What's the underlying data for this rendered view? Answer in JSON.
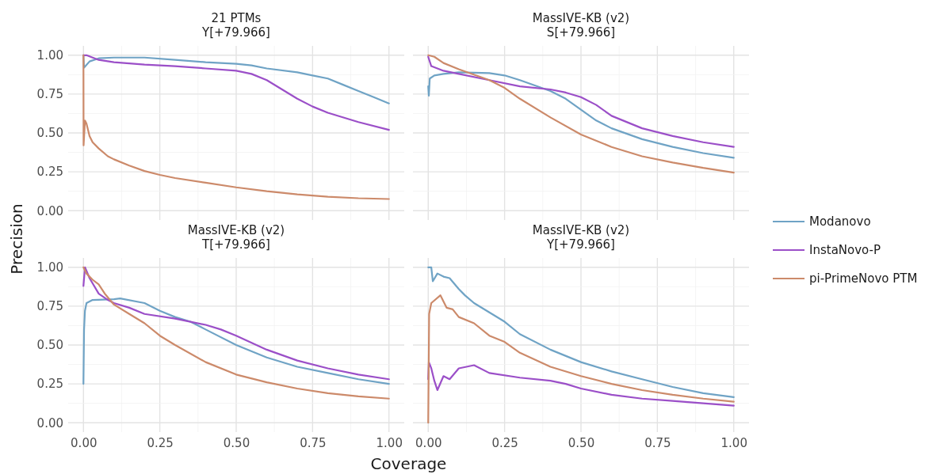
{
  "chart_data": [
    {
      "type": "line",
      "title": "21 PTMs\nY[+79.966]",
      "ylabel": "Precision",
      "legend": "right",
      "grid": true,
      "tick_labels": "y",
      "xlim": [
        -0.05,
        1.05
      ],
      "ylim": [
        -0.06,
        1.06
      ],
      "xticks": [
        0,
        {
          "value": 0.125,
          "label": null
        },
        0.25,
        {
          "value": 0.375,
          "label": null
        },
        0.5,
        {
          "value": 0.625,
          "label": null
        },
        0.75,
        {
          "value": 0.875,
          "label": null
        },
        1
      ],
      "yticks": [
        {
          "value": 0,
          "label": "0.00"
        },
        {
          "value": 0.125,
          "label": null
        },
        {
          "value": 0.25,
          "label": "0.25"
        },
        {
          "value": 0.375,
          "label": null
        },
        {
          "value": 0.5,
          "label": "0.50"
        },
        {
          "value": 0.625,
          "label": null
        },
        {
          "value": 0.75,
          "label": "0.75"
        },
        {
          "value": 0.875,
          "label": null
        },
        {
          "value": 1,
          "label": "1.00"
        }
      ],
      "series": [
        {
          "name": "Modanovo",
          "color": "#6fa3c5",
          "x": [
            0,
            0.002,
            0.02,
            0.05,
            0.1,
            0.2,
            0.3,
            0.4,
            0.5,
            0.55,
            0.6,
            0.7,
            0.75,
            0.8,
            0.85,
            0.9,
            0.95,
            1.0
          ],
          "values": [
            1.0,
            0.92,
            0.96,
            0.98,
            0.985,
            0.985,
            0.97,
            0.955,
            0.945,
            0.935,
            0.915,
            0.89,
            0.87,
            0.85,
            0.81,
            0.77,
            0.73,
            0.69
          ]
        },
        {
          "name": "InstaNovo-P",
          "color": "#9b4fc8",
          "x": [
            0,
            0.01,
            0.05,
            0.1,
            0.2,
            0.3,
            0.4,
            0.5,
            0.55,
            0.6,
            0.65,
            0.7,
            0.75,
            0.8,
            0.9,
            1.0
          ],
          "values": [
            1.0,
            1.0,
            0.97,
            0.955,
            0.94,
            0.93,
            0.915,
            0.9,
            0.88,
            0.84,
            0.78,
            0.72,
            0.67,
            0.63,
            0.57,
            0.52
          ]
        },
        {
          "name": "pi-PrimeNovo PTM",
          "color": "#cc8a6a",
          "x": [
            0,
            0.0005,
            0.005,
            0.01,
            0.02,
            0.03,
            0.05,
            0.08,
            0.1,
            0.15,
            0.2,
            0.25,
            0.3,
            0.4,
            0.5,
            0.6,
            0.7,
            0.8,
            0.9,
            1.0
          ],
          "values": [
            1.0,
            0.42,
            0.58,
            0.56,
            0.48,
            0.44,
            0.4,
            0.35,
            0.33,
            0.29,
            0.255,
            0.23,
            0.21,
            0.18,
            0.15,
            0.125,
            0.105,
            0.09,
            0.08,
            0.075
          ]
        }
      ]
    },
    {
      "type": "line",
      "title": "MassIVE-KB (v2)\nS[+79.966]",
      "grid": true,
      "tick_labels": false,
      "xlim": [
        -0.05,
        1.05
      ],
      "ylim": [
        -0.06,
        1.06
      ],
      "xticks": [
        0,
        {
          "value": 0.125,
          "label": null
        },
        0.25,
        {
          "value": 0.375,
          "label": null
        },
        0.5,
        {
          "value": 0.625,
          "label": null
        },
        0.75,
        {
          "value": 0.875,
          "label": null
        },
        1
      ],
      "yticks": [
        0,
        {
          "value": 0.125,
          "label": null
        },
        0.25,
        {
          "value": 0.375,
          "label": null
        },
        0.5,
        {
          "value": 0.625,
          "label": null
        },
        0.75,
        {
          "value": 0.875,
          "label": null
        },
        1
      ],
      "series": [
        {
          "color": "#6fa3c5",
          "x": [
            0,
            0.002,
            0.005,
            0.02,
            0.05,
            0.1,
            0.2,
            0.25,
            0.3,
            0.4,
            0.45,
            0.5,
            0.55,
            0.6,
            0.7,
            0.8,
            0.9,
            1.0
          ],
          "values": [
            0.8,
            0.74,
            0.85,
            0.87,
            0.88,
            0.89,
            0.885,
            0.87,
            0.84,
            0.77,
            0.72,
            0.65,
            0.58,
            0.53,
            0.46,
            0.41,
            0.37,
            0.34
          ]
        },
        {
          "color": "#9b4fc8",
          "x": [
            0,
            0.01,
            0.05,
            0.1,
            0.2,
            0.3,
            0.4,
            0.45,
            0.5,
            0.55,
            0.6,
            0.7,
            0.8,
            0.9,
            1.0
          ],
          "values": [
            0.99,
            0.93,
            0.9,
            0.88,
            0.84,
            0.8,
            0.78,
            0.76,
            0.73,
            0.68,
            0.61,
            0.53,
            0.48,
            0.44,
            0.41
          ]
        },
        {
          "color": "#cc8a6a",
          "x": [
            0,
            0.02,
            0.05,
            0.1,
            0.2,
            0.25,
            0.3,
            0.4,
            0.5,
            0.6,
            0.7,
            0.8,
            0.9,
            1.0
          ],
          "values": [
            1.0,
            0.99,
            0.95,
            0.91,
            0.84,
            0.79,
            0.72,
            0.6,
            0.49,
            0.41,
            0.35,
            0.31,
            0.275,
            0.245
          ]
        }
      ]
    },
    {
      "type": "line",
      "title": "MassIVE-KB (v2)\nT[+79.966]",
      "xlabel": "Coverage",
      "grid": true,
      "xlim": [
        -0.05,
        1.05
      ],
      "ylim": [
        -0.06,
        1.06
      ],
      "xticks": [
        {
          "value": 0,
          "label": "0.00"
        },
        {
          "value": 0.125,
          "label": null
        },
        {
          "value": 0.25,
          "label": "0.25"
        },
        {
          "value": 0.375,
          "label": null
        },
        {
          "value": 0.5,
          "label": "0.50"
        },
        {
          "value": 0.625,
          "label": null
        },
        {
          "value": 0.75,
          "label": "0.75"
        },
        {
          "value": 0.875,
          "label": null
        },
        {
          "value": 1,
          "label": "1.00"
        }
      ],
      "yticks": [
        {
          "value": 0,
          "label": "0.00"
        },
        {
          "value": 0.125,
          "label": null
        },
        {
          "value": 0.25,
          "label": "0.25"
        },
        {
          "value": 0.375,
          "label": null
        },
        {
          "value": 0.5,
          "label": "0.50"
        },
        {
          "value": 0.625,
          "label": null
        },
        {
          "value": 0.75,
          "label": "0.75"
        },
        {
          "value": 0.875,
          "label": null
        },
        {
          "value": 1,
          "label": "1.00"
        }
      ],
      "series": [
        {
          "color": "#6fa3c5",
          "x": [
            0,
            0.002,
            0.005,
            0.01,
            0.03,
            0.1,
            0.12,
            0.2,
            0.25,
            0.3,
            0.35,
            0.4,
            0.5,
            0.6,
            0.7,
            0.8,
            0.9,
            1.0
          ],
          "values": [
            0.25,
            0.6,
            0.72,
            0.77,
            0.79,
            0.795,
            0.8,
            0.77,
            0.72,
            0.68,
            0.65,
            0.6,
            0.5,
            0.42,
            0.36,
            0.32,
            0.28,
            0.25
          ]
        },
        {
          "color": "#9b4fc8",
          "x": [
            0,
            0.005,
            0.02,
            0.05,
            0.08,
            0.1,
            0.15,
            0.2,
            0.3,
            0.4,
            0.45,
            0.5,
            0.6,
            0.7,
            0.8,
            0.9,
            1.0
          ],
          "values": [
            0.88,
            1.0,
            0.93,
            0.83,
            0.79,
            0.77,
            0.74,
            0.7,
            0.67,
            0.63,
            0.6,
            0.56,
            0.47,
            0.4,
            0.35,
            0.31,
            0.28
          ]
        },
        {
          "color": "#cc8a6a",
          "x": [
            0,
            0.01,
            0.03,
            0.05,
            0.07,
            0.1,
            0.15,
            0.2,
            0.25,
            0.3,
            0.4,
            0.5,
            0.6,
            0.7,
            0.8,
            0.9,
            1.0
          ],
          "values": [
            1.0,
            0.96,
            0.92,
            0.89,
            0.83,
            0.76,
            0.7,
            0.64,
            0.56,
            0.5,
            0.39,
            0.31,
            0.26,
            0.22,
            0.19,
            0.17,
            0.155
          ]
        }
      ]
    },
    {
      "type": "line",
      "title": "MassIVE-KB (v2)\nY[+79.966]",
      "grid": true,
      "tick_labels": "x",
      "xlim": [
        -0.05,
        1.05
      ],
      "ylim": [
        -0.06,
        1.06
      ],
      "xticks": [
        {
          "value": 0,
          "label": "0.00"
        },
        {
          "value": 0.125,
          "label": null
        },
        {
          "value": 0.25,
          "label": "0.25"
        },
        {
          "value": 0.375,
          "label": null
        },
        {
          "value": 0.5,
          "label": "0.50"
        },
        {
          "value": 0.625,
          "label": null
        },
        {
          "value": 0.75,
          "label": "0.75"
        },
        {
          "value": 0.875,
          "label": null
        },
        {
          "value": 1,
          "label": "1.00"
        }
      ],
      "yticks": [
        0,
        {
          "value": 0.125,
          "label": null
        },
        0.25,
        {
          "value": 0.375,
          "label": null
        },
        0.5,
        {
          "value": 0.625,
          "label": null
        },
        0.75,
        {
          "value": 0.875,
          "label": null
        },
        1
      ],
      "series": [
        {
          "color": "#6fa3c5",
          "x": [
            0,
            0.01,
            0.015,
            0.03,
            0.05,
            0.07,
            0.1,
            0.12,
            0.15,
            0.2,
            0.25,
            0.3,
            0.4,
            0.5,
            0.6,
            0.7,
            0.8,
            0.9,
            1.0
          ],
          "values": [
            1.0,
            1.0,
            0.91,
            0.96,
            0.94,
            0.93,
            0.86,
            0.82,
            0.77,
            0.71,
            0.65,
            0.57,
            0.47,
            0.39,
            0.33,
            0.28,
            0.23,
            0.19,
            0.165
          ]
        },
        {
          "color": "#9b4fc8",
          "x": [
            0,
            0.002,
            0.01,
            0.02,
            0.03,
            0.05,
            0.07,
            0.1,
            0.15,
            0.2,
            0.3,
            0.4,
            0.45,
            0.5,
            0.6,
            0.7,
            0.8,
            0.9,
            1.0
          ],
          "values": [
            0.28,
            0.39,
            0.35,
            0.27,
            0.21,
            0.3,
            0.28,
            0.35,
            0.37,
            0.32,
            0.29,
            0.27,
            0.25,
            0.22,
            0.18,
            0.155,
            0.14,
            0.125,
            0.11
          ]
        },
        {
          "color": "#cc8a6a",
          "x": [
            0,
            0.003,
            0.01,
            0.04,
            0.06,
            0.08,
            0.1,
            0.15,
            0.2,
            0.25,
            0.3,
            0.4,
            0.5,
            0.6,
            0.7,
            0.8,
            0.9,
            1.0
          ],
          "values": [
            0,
            0.7,
            0.77,
            0.82,
            0.74,
            0.73,
            0.68,
            0.64,
            0.56,
            0.52,
            0.45,
            0.36,
            0.3,
            0.25,
            0.21,
            0.18,
            0.155,
            0.135
          ]
        }
      ]
    }
  ]
}
